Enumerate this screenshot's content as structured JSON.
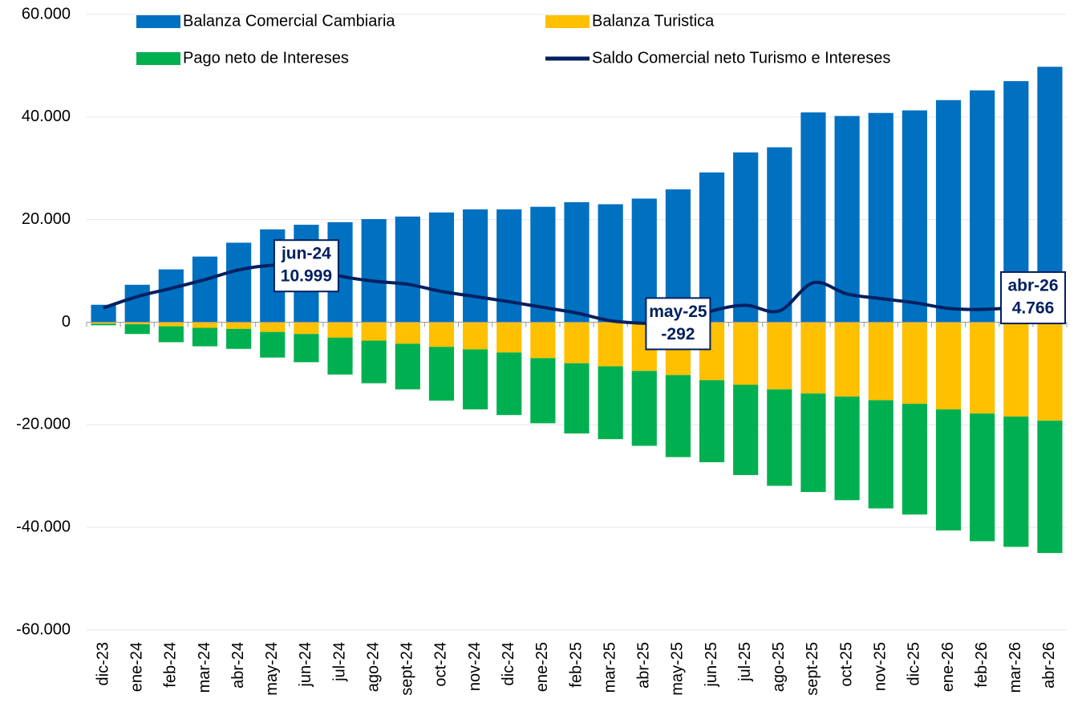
{
  "chart_data": {
    "type": "stacked_bar_line",
    "categories": [
      "dic-23",
      "ene-24",
      "feb-24",
      "mar-24",
      "abr-24",
      "may-24",
      "jun-24",
      "jul-24",
      "ago-24",
      "sept-24",
      "oct-24",
      "nov-24",
      "dic-24",
      "ene-25",
      "feb-25",
      "mar-25",
      "abr-25",
      "may-25",
      "jun-25",
      "jul-25",
      "ago-25",
      "sept-25",
      "oct-25",
      "nov-25",
      "dic-25",
      "ene-26",
      "feb-26",
      "mar-26",
      "abr-26"
    ],
    "series": [
      {
        "name": "Balanza Comercial Cambiaria",
        "type": "bar",
        "color": "#0070c0",
        "values": [
          3400,
          7300,
          10300,
          12800,
          15500,
          18100,
          19000,
          19500,
          20100,
          20600,
          21400,
          22000,
          22000,
          22500,
          23400,
          23000,
          24100,
          25900,
          29200,
          33100,
          34100,
          40900,
          40200,
          40800,
          41300,
          43300,
          45200,
          47000,
          49800
        ]
      },
      {
        "name": "Balanza Turistica",
        "type": "bar",
        "color": "#ffc000",
        "values": [
          -300,
          -400,
          -800,
          -1100,
          -1300,
          -1900,
          -2300,
          -3000,
          -3600,
          -4200,
          -4800,
          -5300,
          -5900,
          -7000,
          -8000,
          -8600,
          -9500,
          -10300,
          -11300,
          -12200,
          -13100,
          -13900,
          -14500,
          -15200,
          -15900,
          -17000,
          -17800,
          -18400,
          -19200
        ]
      },
      {
        "name": "Pago neto de Intereses",
        "type": "bar",
        "color": "#00b050",
        "values": [
          -300,
          -1900,
          -3100,
          -3600,
          -3900,
          -5000,
          -5500,
          -7200,
          -8300,
          -8900,
          -10500,
          -11700,
          -12200,
          -12700,
          -13700,
          -14200,
          -14600,
          -16000,
          -16000,
          -17600,
          -18800,
          -19200,
          -20200,
          -21100,
          -21600,
          -23600,
          -24900,
          -25400,
          -25800
        ]
      },
      {
        "name": "Saldo Comercial neto Turismo e Intereses",
        "type": "line",
        "color": "#002060",
        "values": [
          2800,
          5000,
          6600,
          8300,
          10200,
          11100,
          10999,
          9000,
          8000,
          7400,
          6000,
          5000,
          4000,
          2900,
          1800,
          300,
          -200,
          -292,
          2200,
          3300,
          2200,
          7700,
          5500,
          4600,
          3800,
          2700,
          2500,
          3000,
          4766
        ],
        "value_labels": [
          null,
          null,
          null,
          null,
          null,
          null,
          "10.999",
          null,
          null,
          null,
          null,
          null,
          null,
          null,
          null,
          null,
          null,
          "-292",
          null,
          null,
          null,
          null,
          null,
          null,
          null,
          null,
          null,
          null,
          "4.766"
        ]
      }
    ],
    "ylim": [
      -60000,
      60000
    ],
    "yticks": [
      {
        "value": -60000,
        "label": "-60.000"
      },
      {
        "value": -40000,
        "label": "-40.000"
      },
      {
        "value": -20000,
        "label": "-20.000"
      },
      0,
      {
        "value": 20000,
        "label": "20.000"
      },
      {
        "value": 40000,
        "label": "40.000"
      },
      {
        "value": 60000,
        "label": "60.000"
      }
    ],
    "grid": true
  }
}
